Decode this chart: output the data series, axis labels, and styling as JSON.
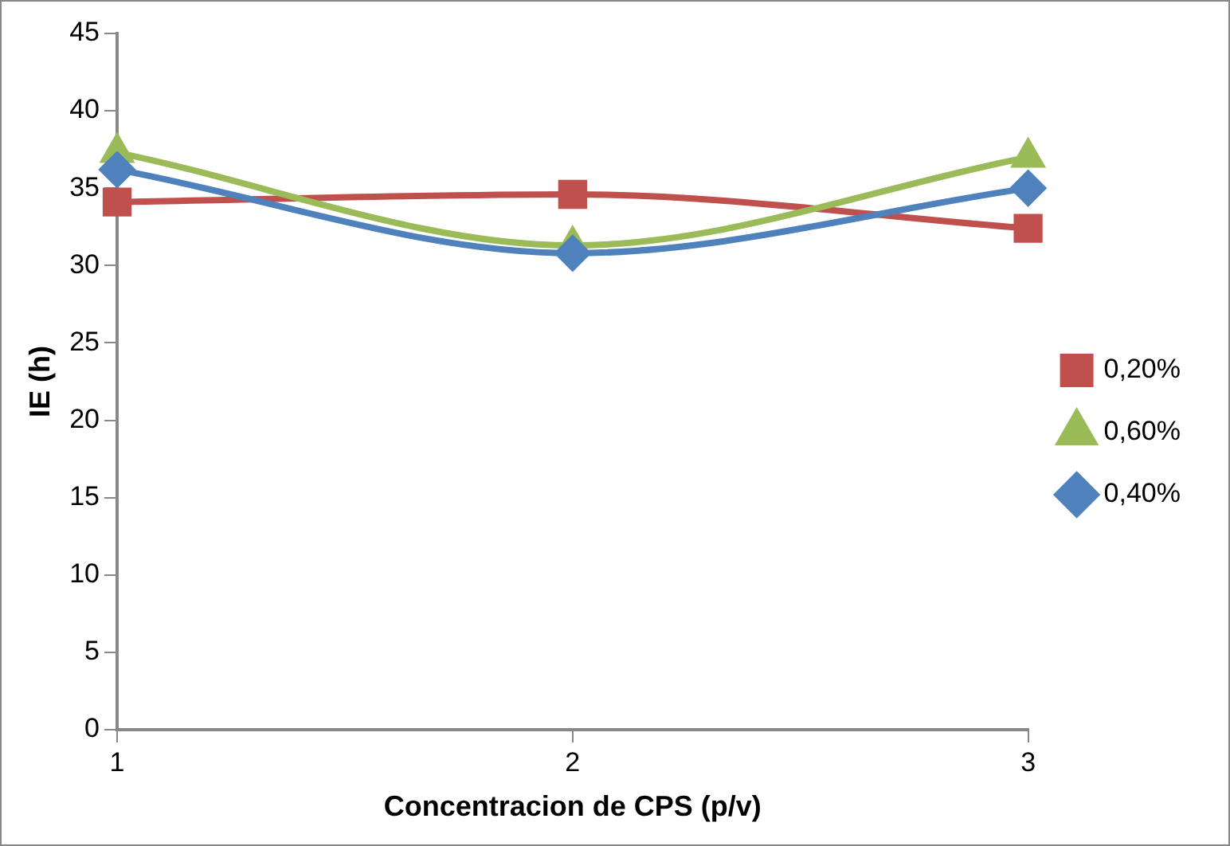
{
  "chart_data": {
    "type": "line",
    "xlabel": "Concentracion de CPS (p/v)",
    "ylabel": "IE (h)",
    "x": [
      1,
      2,
      3
    ],
    "xlim": [
      1,
      3
    ],
    "xticks": [
      1,
      2,
      3
    ],
    "ylim": [
      0,
      45
    ],
    "yticks": [
      0,
      5,
      10,
      15,
      20,
      25,
      30,
      35,
      40,
      45
    ],
    "grid": false,
    "legend": "right",
    "series": [
      {
        "name": "0,20%",
        "color": "#c0504d",
        "marker": "square",
        "values": [
          34.1,
          34.6,
          32.4
        ]
      },
      {
        "name": "0,60%",
        "color": "#9bbb59",
        "marker": "triangle",
        "values": [
          37.3,
          31.3,
          37.0
        ]
      },
      {
        "name": "0,40%",
        "color": "#4f81bd",
        "marker": "diamond",
        "values": [
          36.2,
          30.8,
          35.0
        ]
      }
    ]
  }
}
